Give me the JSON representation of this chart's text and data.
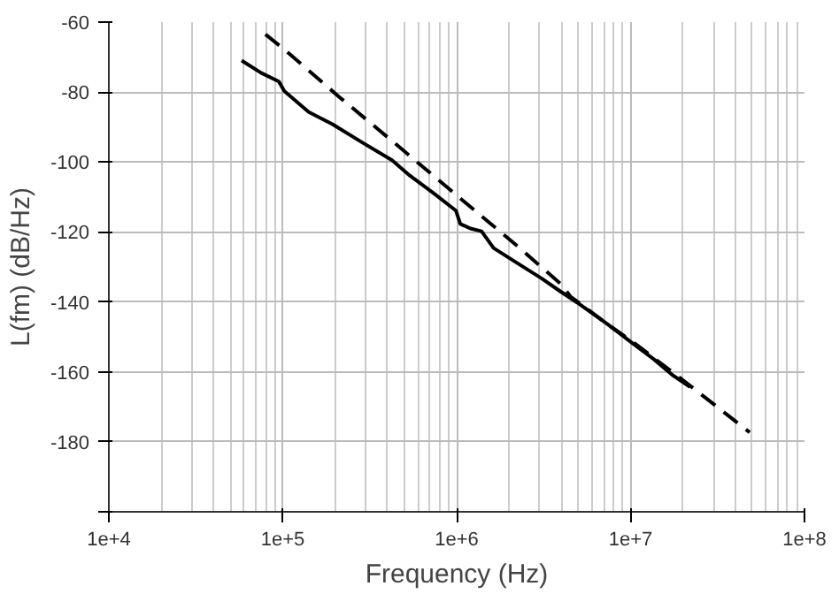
{
  "chart_data": {
    "type": "line",
    "xlabel": "Frequency (Hz)",
    "ylabel": "L(fm) (dB/Hz)",
    "log": "x",
    "xlim": [
      10000,
      100000000
    ],
    "xticks": [
      {
        "value": 10000,
        "label": "1e+4"
      },
      {
        "value": 100000,
        "label": "1e+5"
      },
      {
        "value": 1000000,
        "label": "1e+6"
      },
      {
        "value": 10000000,
        "label": "1e+7"
      },
      {
        "value": 100000000,
        "label": "1e+8"
      }
    ],
    "ylim": [
      -200,
      -60
    ],
    "yticks": [
      -60,
      -80,
      -100,
      -120,
      -140,
      -160,
      -180,
      {
        "value": -200,
        "label": null
      }
    ],
    "grid": true,
    "series": [
      {
        "color": "#000000",
        "line_style": "solid",
        "x": [
          58000,
          75000,
          95000,
          102000,
          141000,
          193000,
          286000,
          425000,
          538000,
          740000,
          990000,
          1050000,
          1200000,
          1390000,
          1630000,
          2230000,
          3060000,
          3870000,
          4900000,
          7300000,
          10000000,
          13700000,
          17400000,
          22000000
        ],
        "values": [
          -71,
          -74.5,
          -77,
          -79.7,
          -85.7,
          -89.2,
          -94.4,
          -99.5,
          -103.9,
          -109,
          -113.9,
          -117.7,
          -119,
          -119.8,
          -124.6,
          -128.9,
          -133.2,
          -136.7,
          -140.1,
          -146.2,
          -151.4,
          -156.5,
          -160.9,
          -164.3
        ]
      },
      {
        "color": "#000000",
        "line_style": "dashed",
        "x": [
          79500,
          102000,
          209000,
          460000,
          1010000,
          2230000,
          4000000,
          4500000,
          7300000,
          10800000,
          20300000,
          48400000
        ],
        "values": [
          -63.5,
          -67.8,
          -81.2,
          -95.4,
          -109.7,
          -124,
          -135,
          -138.4,
          -146.2,
          -152.2,
          -162.6,
          -177.3
        ]
      }
    ]
  }
}
